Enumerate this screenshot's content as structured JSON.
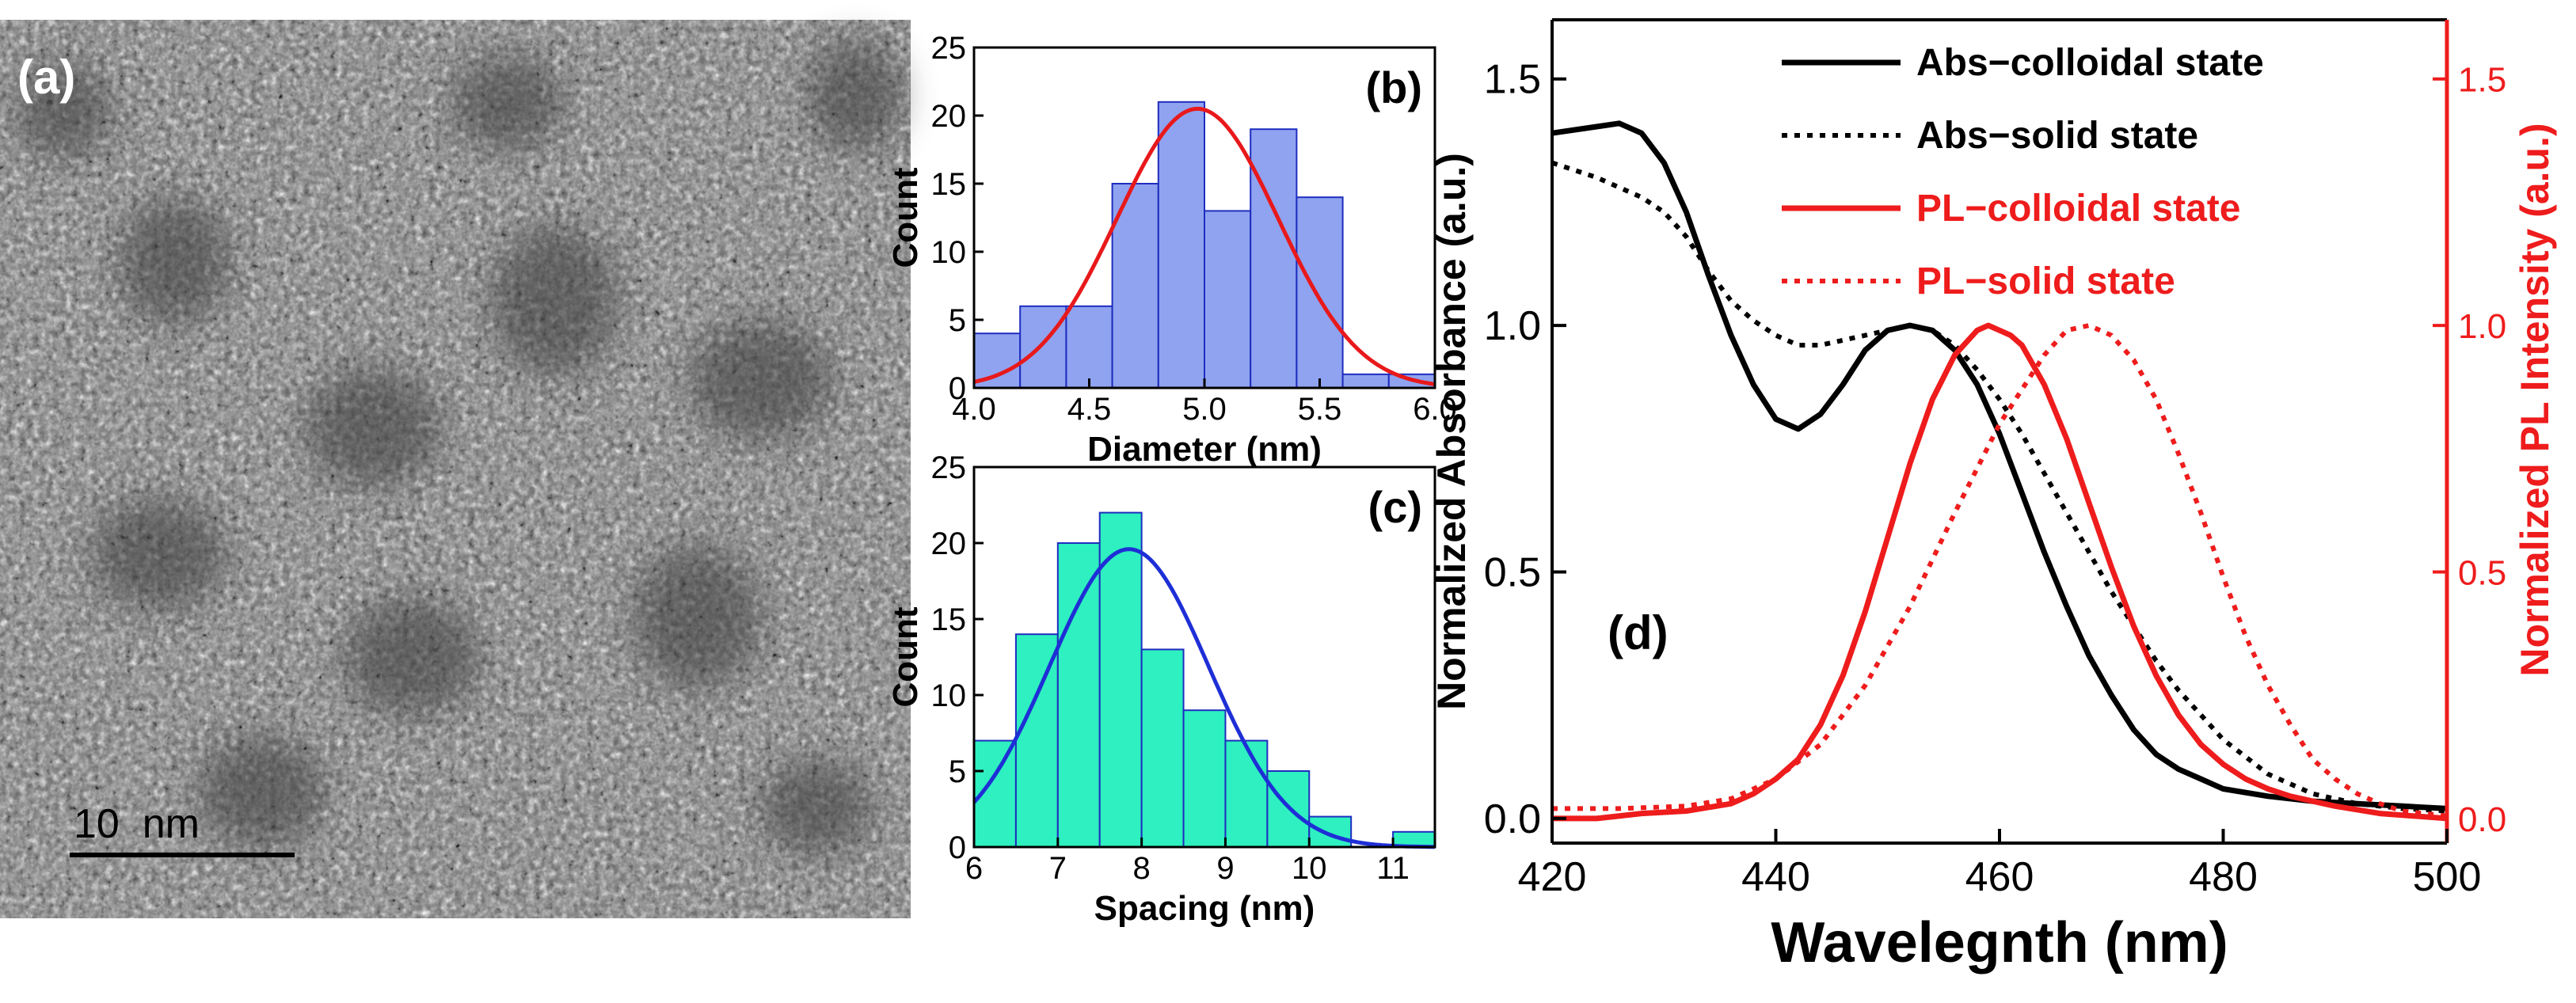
{
  "image_panel": {
    "label": "(a)",
    "scale_bar_text": "10  nm"
  },
  "chart_data": [
    {
      "id": "b",
      "type": "bar",
      "panel_label": "(b)",
      "xlabel": "Diameter (nm)",
      "ylabel": "Count",
      "xlim": [
        4.0,
        6.0
      ],
      "ylim": [
        0,
        25
      ],
      "xticks": [
        4.0,
        4.5,
        5.0,
        5.5,
        6.0
      ],
      "xtick_labels": [
        "4.0",
        "4.5",
        "5.0",
        "5.5",
        "6.0"
      ],
      "yticks": [
        0,
        5,
        10,
        15,
        20,
        25
      ],
      "bin_edges": [
        4.0,
        4.2,
        4.4,
        4.6,
        4.8,
        5.0,
        5.2,
        5.4,
        5.6,
        5.8,
        6.0
      ],
      "values": [
        4,
        6,
        6,
        15,
        21,
        13,
        19,
        14,
        1,
        1
      ],
      "bar_color": "#8fa3f0",
      "bar_edge": "#1f2dbf",
      "fit": {
        "type": "gaussian",
        "mean": 4.97,
        "sigma": 0.35,
        "amplitude": 20.5,
        "color": "#e8191b"
      }
    },
    {
      "id": "c",
      "type": "bar",
      "panel_label": "(c)",
      "xlabel": "Spacing (nm)",
      "ylabel": "Count",
      "xlim": [
        6,
        11.5
      ],
      "ylim": [
        0,
        25
      ],
      "xticks": [
        6,
        7,
        8,
        9,
        10,
        11
      ],
      "xtick_labels": [
        "6",
        "7",
        "8",
        "9",
        "10",
        "11"
      ],
      "yticks": [
        0,
        5,
        10,
        15,
        20,
        25
      ],
      "bin_edges": [
        6.0,
        6.5,
        7.0,
        7.5,
        8.0,
        8.5,
        9.0,
        9.5,
        10.0,
        10.5,
        11.0,
        11.5
      ],
      "values": [
        7,
        14,
        20,
        22,
        13,
        9,
        7,
        5,
        2,
        0,
        1
      ],
      "bar_color": "#2ef0c0",
      "bar_edge": "#1f2dbf",
      "fit": {
        "type": "gaussian",
        "mean": 7.85,
        "sigma": 0.95,
        "amplitude": 19.6,
        "color": "#1e2fd6"
      }
    },
    {
      "id": "d",
      "type": "line",
      "panel_label": "(d)",
      "xlabel": "Wavelegnth (nm)",
      "ylabel": "Normalized Absorbance (a.u.)",
      "ylabel_right": "Normalized PL Intensity (a.u.)",
      "xlim": [
        420,
        500
      ],
      "ylim": [
        -0.05,
        1.62
      ],
      "xticks": [
        420,
        440,
        460,
        480,
        500
      ],
      "yticks": [
        0.0,
        0.5,
        1.0,
        1.5
      ],
      "ytick_labels": [
        "0.0",
        "0.5",
        "1.0",
        "1.5"
      ],
      "series": [
        {
          "name": "Abs−colloidal state",
          "color": "#000000",
          "dash": "solid",
          "axis": "left",
          "x": [
            420,
            423,
            426,
            428,
            430,
            432,
            434,
            436,
            438,
            440,
            442,
            444,
            446,
            448,
            450,
            452,
            454,
            456,
            458,
            460,
            462,
            464,
            466,
            468,
            470,
            472,
            474,
            476,
            478,
            480,
            484,
            488,
            492,
            496,
            500
          ],
          "y": [
            1.39,
            1.4,
            1.41,
            1.39,
            1.33,
            1.23,
            1.1,
            0.98,
            0.88,
            0.81,
            0.79,
            0.82,
            0.88,
            0.95,
            0.99,
            1.0,
            0.99,
            0.95,
            0.88,
            0.78,
            0.66,
            0.54,
            0.43,
            0.33,
            0.25,
            0.18,
            0.13,
            0.1,
            0.08,
            0.06,
            0.045,
            0.035,
            0.03,
            0.025,
            0.02
          ]
        },
        {
          "name": "Abs−solid state",
          "color": "#000000",
          "dash": "dotted",
          "axis": "left",
          "x": [
            420,
            424,
            428,
            430,
            432,
            434,
            436,
            438,
            440,
            442,
            444,
            446,
            448,
            450,
            452,
            454,
            456,
            458,
            460,
            462,
            464,
            466,
            468,
            470,
            472,
            474,
            476,
            478,
            480,
            484,
            488,
            492,
            496,
            500
          ],
          "y": [
            1.33,
            1.3,
            1.26,
            1.23,
            1.18,
            1.11,
            1.05,
            1.01,
            0.98,
            0.96,
            0.96,
            0.97,
            0.98,
            0.99,
            1.0,
            0.99,
            0.96,
            0.91,
            0.85,
            0.78,
            0.7,
            0.62,
            0.54,
            0.46,
            0.39,
            0.32,
            0.26,
            0.21,
            0.16,
            0.09,
            0.05,
            0.03,
            0.02,
            0.015
          ]
        },
        {
          "name": "PL−colloidal state",
          "color": "#ee1c1c",
          "dash": "solid",
          "axis": "right",
          "x": [
            420,
            424,
            428,
            432,
            436,
            438,
            440,
            442,
            444,
            446,
            448,
            450,
            452,
            454,
            456,
            458,
            459,
            460,
            461,
            462,
            464,
            466,
            468,
            470,
            472,
            474,
            476,
            478,
            480,
            482,
            484,
            486,
            488,
            490,
            494,
            500
          ],
          "y": [
            0.0,
            0.0,
            0.01,
            0.015,
            0.03,
            0.05,
            0.08,
            0.12,
            0.19,
            0.29,
            0.42,
            0.57,
            0.72,
            0.85,
            0.94,
            0.99,
            1.0,
            0.99,
            0.98,
            0.96,
            0.88,
            0.77,
            0.64,
            0.51,
            0.39,
            0.29,
            0.21,
            0.15,
            0.11,
            0.08,
            0.06,
            0.045,
            0.035,
            0.025,
            0.01,
            0.0
          ]
        },
        {
          "name": "PL−solid state",
          "color": "#ee1c1c",
          "dash": "dotted",
          "axis": "right",
          "x": [
            420,
            426,
            432,
            436,
            440,
            444,
            448,
            452,
            456,
            460,
            464,
            466,
            468,
            470,
            472,
            474,
            476,
            478,
            480,
            482,
            484,
            486,
            488,
            490,
            492,
            494,
            496,
            500
          ],
          "y": [
            0.02,
            0.02,
            0.025,
            0.04,
            0.08,
            0.15,
            0.27,
            0.43,
            0.62,
            0.8,
            0.94,
            0.99,
            1.0,
            0.98,
            0.93,
            0.85,
            0.74,
            0.62,
            0.49,
            0.37,
            0.27,
            0.19,
            0.12,
            0.08,
            0.05,
            0.03,
            0.015,
            0.005
          ]
        }
      ],
      "legend_position": "top-right"
    }
  ]
}
